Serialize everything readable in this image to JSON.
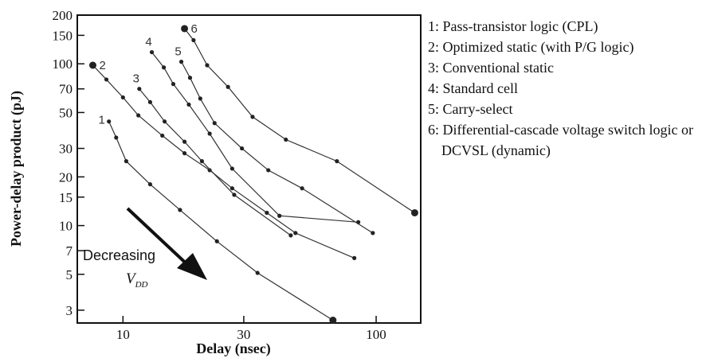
{
  "chart_data": {
    "type": "line",
    "title": "",
    "xlabel": "Delay (nsec)",
    "ylabel": "Power-delay product (pJ)",
    "xscale": "log",
    "yscale": "log",
    "xlim": [
      6.6,
      150
    ],
    "ylim": [
      2.5,
      200
    ],
    "xticks": [
      10,
      30,
      100
    ],
    "yticks": [
      3,
      5,
      7,
      10,
      15,
      20,
      30,
      50,
      70,
      100,
      150,
      200
    ],
    "grid": false,
    "legend_position": "right",
    "series": [
      {
        "name": "1",
        "legend": "1: Pass-transistor logic (CPL)",
        "x": [
          8.8,
          9.4,
          10.3,
          12.8,
          16.8,
          23.5,
          34.0,
          67.5
        ],
        "y": [
          44,
          35,
          25,
          18,
          12.5,
          8,
          5.1,
          2.6
        ]
      },
      {
        "name": "2",
        "legend": "2: Optimized static (with P/G logic)",
        "x": [
          7.6,
          8.6,
          10.0,
          11.5,
          14.3,
          17.5,
          22.0,
          27.0,
          37.0,
          48.0,
          82.0
        ],
        "y": [
          98,
          80,
          62,
          48,
          36,
          28,
          22,
          17,
          12,
          9,
          6.3
        ]
      },
      {
        "name": "3",
        "legend": "3: Conventional static",
        "x": [
          11.6,
          12.8,
          14.6,
          17.5,
          20.5,
          27.5,
          46.0
        ],
        "y": [
          70,
          58,
          44,
          33,
          25,
          15.5,
          8.7
        ]
      },
      {
        "name": "4",
        "legend": "4: Standard cell",
        "x": [
          13.0,
          14.5,
          15.8,
          18.2,
          22.0,
          27.0,
          41.5,
          85.0
        ],
        "y": [
          118,
          95,
          75,
          56,
          37,
          22.5,
          11.5,
          10.5
        ]
      },
      {
        "name": "5",
        "legend": "5: Carry-select",
        "x": [
          17.0,
          18.4,
          20.2,
          23.0,
          29.5,
          37.5,
          51.0,
          97.0
        ],
        "y": [
          103,
          82,
          61,
          43,
          30,
          22,
          17,
          9
        ]
      },
      {
        "name": "6",
        "legend": "6: Differential-cascade voltage switch logic or DCVSL (dynamic)",
        "x": [
          17.5,
          19.0,
          21.5,
          26.0,
          32.5,
          44.0,
          70.0,
          142.0
        ],
        "y": [
          165,
          140,
          98,
          72,
          47,
          34,
          25,
          12
        ]
      }
    ],
    "endpoint_markers": [
      {
        "series": "2",
        "position": "start"
      },
      {
        "series": "6",
        "position": "start"
      },
      {
        "series": "6",
        "position": "end"
      },
      {
        "series": "1",
        "position": "end"
      }
    ],
    "annotations": [
      {
        "text": "Decreasing"
      },
      {
        "text": "V",
        "subscript": "DD"
      }
    ]
  }
}
